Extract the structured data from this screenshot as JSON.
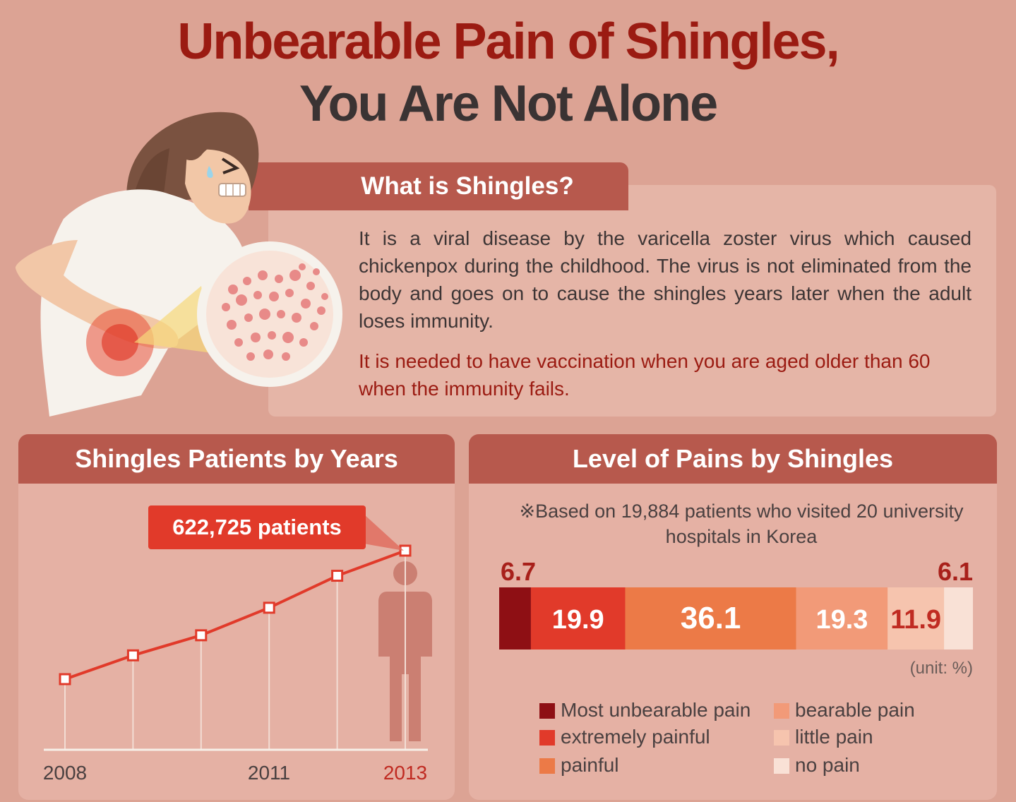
{
  "title": {
    "line1": "Unbearable Pain of Shingles,",
    "line2": "You Are Not Alone"
  },
  "what_is": {
    "title": "What is Shingles?",
    "paragraph1": "It is a viral disease by the varicella zoster virus which caused chickenpox during the childhood. The virus is not eliminated from the body and goes on to cause the shingles years later when the adult loses immunity.",
    "paragraph2": "It is needed to have vaccination when you are aged older than 60 when the immunity fails."
  },
  "colors": {
    "title_red": "#9b1b12",
    "panel_header": "#b7594d",
    "line": "#e13a2a",
    "most_unbearable": "#8e0f14",
    "extremely_painful": "#e13a2a",
    "painful": "#ec7a47",
    "bearable": "#f29a78",
    "little": "#f6c4ae",
    "no_pain": "#f9e1d6"
  },
  "chart_data": [
    {
      "type": "line",
      "title": "Shingles Patients by Years",
      "x": [
        2008,
        2009,
        2010,
        2011,
        2012,
        2013
      ],
      "x_tick_labels": [
        "2008",
        "2011",
        "2013"
      ],
      "values": [
        450000,
        482000,
        509000,
        546000,
        589000,
        622725
      ],
      "callout": "622,725 patients",
      "grid": false
    },
    {
      "type": "bar",
      "orientation": "horizontal-stacked",
      "title": "Level of Pains by Shingles",
      "note": "※Based on 19,884 patients who visited 20 university hospitals in Korea",
      "unit": "(unit: %)",
      "series": [
        {
          "name": "Most unbearable pain",
          "value": 6.7,
          "label": "6.7"
        },
        {
          "name": "extremely painful",
          "value": 19.9,
          "label": "19.9"
        },
        {
          "name": "painful",
          "value": 36.1,
          "label": "36.1"
        },
        {
          "name": "bearable pain",
          "value": 19.3,
          "label": "19.3"
        },
        {
          "name": "little pain",
          "value": 11.9,
          "label": "11.9"
        },
        {
          "name": "no pain",
          "value": 6.1,
          "label": "6.1"
        }
      ],
      "legend": "bottom"
    }
  ]
}
